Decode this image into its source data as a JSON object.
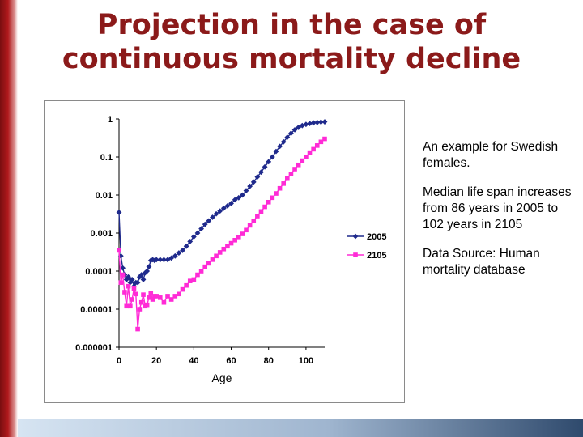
{
  "title": {
    "line1": "Projection in the case of",
    "line2": "continuous mortality decline"
  },
  "bullets": [
    "An example for Swedish females.",
    "Median life span increases from 86 years in 2005 to 102 years in 2105",
    "Data Source: Human mortality database"
  ],
  "colors": {
    "title": "#8b1a1a",
    "series_2005": "#1f2a8c",
    "series_2105": "#ff2bd6"
  },
  "chart_data": {
    "type": "scatter",
    "title": "",
    "xlabel": "Age",
    "ylabel": "",
    "yscale": "log",
    "xlim": [
      0,
      110
    ],
    "ylim": [
      1e-06,
      1
    ],
    "xticks": [
      "0",
      "20",
      "40",
      "60",
      "80",
      "100"
    ],
    "yticks": [
      "1",
      "0.1",
      "0.01",
      "0.001",
      "0.0001",
      "0.00001",
      "0.000001"
    ],
    "legend_position": "right",
    "series": [
      {
        "name": "2005",
        "marker": "diamond",
        "x": [
          0,
          1,
          2,
          3,
          4,
          5,
          6,
          7,
          8,
          9,
          10,
          11,
          12,
          13,
          14,
          15,
          16,
          17,
          18,
          19,
          20,
          22,
          24,
          26,
          28,
          30,
          32,
          34,
          36,
          38,
          40,
          42,
          44,
          46,
          48,
          50,
          52,
          54,
          56,
          58,
          60,
          62,
          64,
          66,
          68,
          70,
          72,
          74,
          76,
          78,
          80,
          82,
          84,
          86,
          88,
          90,
          92,
          94,
          96,
          98,
          100,
          102,
          104,
          106,
          108,
          110
        ],
        "values": [
          0.0035,
          0.00025,
          0.00012,
          8e-05,
          6e-05,
          7e-05,
          5e-05,
          6e-05,
          4e-05,
          5e-05,
          5e-05,
          7e-05,
          8e-05,
          6e-05,
          9e-05,
          0.0001,
          0.00013,
          0.00019,
          0.0002,
          0.00019,
          0.0002,
          0.0002,
          0.0002,
          0.0002,
          0.00022,
          0.00025,
          0.0003,
          0.00035,
          0.00045,
          0.0006,
          0.0008,
          0.001,
          0.0013,
          0.0017,
          0.0021,
          0.0026,
          0.0032,
          0.0038,
          0.0045,
          0.0052,
          0.006,
          0.0075,
          0.0085,
          0.01,
          0.013,
          0.017,
          0.022,
          0.03,
          0.04,
          0.055,
          0.075,
          0.1,
          0.14,
          0.19,
          0.25,
          0.33,
          0.42,
          0.52,
          0.6,
          0.67,
          0.72,
          0.76,
          0.79,
          0.81,
          0.83,
          0.84
        ]
      },
      {
        "name": "2105",
        "marker": "square",
        "x": [
          0,
          1,
          2,
          3,
          4,
          5,
          6,
          7,
          8,
          9,
          10,
          11,
          12,
          13,
          14,
          15,
          16,
          17,
          18,
          19,
          20,
          22,
          24,
          26,
          28,
          30,
          32,
          34,
          36,
          38,
          40,
          42,
          44,
          46,
          48,
          50,
          52,
          54,
          56,
          58,
          60,
          62,
          64,
          66,
          68,
          70,
          72,
          74,
          76,
          78,
          80,
          82,
          84,
          86,
          88,
          90,
          92,
          94,
          96,
          98,
          100,
          102,
          104,
          106,
          108,
          110
        ],
        "values": [
          0.00035,
          5e-05,
          8e-05,
          2.8e-05,
          1.2e-05,
          4e-05,
          1.2e-05,
          1.8e-05,
          3.5e-05,
          2.5e-05,
          3e-06,
          1e-05,
          1.5e-05,
          2.4e-05,
          1.2e-05,
          1.3e-05,
          2e-05,
          2.6e-05,
          1.8e-05,
          2.2e-05,
          2.2e-05,
          2e-05,
          1.5e-05,
          2.2e-05,
          1.8e-05,
          2.2e-05,
          2.5e-05,
          3.3e-05,
          4.2e-05,
          5.5e-05,
          6e-05,
          8e-05,
          0.0001,
          0.00013,
          0.00016,
          0.0002,
          0.00025,
          0.00031,
          0.00038,
          0.00045,
          0.00054,
          0.00065,
          0.00079,
          0.00095,
          0.0012,
          0.0016,
          0.0021,
          0.0028,
          0.0037,
          0.0049,
          0.0065,
          0.0085,
          0.011,
          0.015,
          0.02,
          0.027,
          0.036,
          0.048,
          0.062,
          0.08,
          0.1,
          0.13,
          0.16,
          0.2,
          0.25,
          0.3
        ]
      }
    ]
  }
}
